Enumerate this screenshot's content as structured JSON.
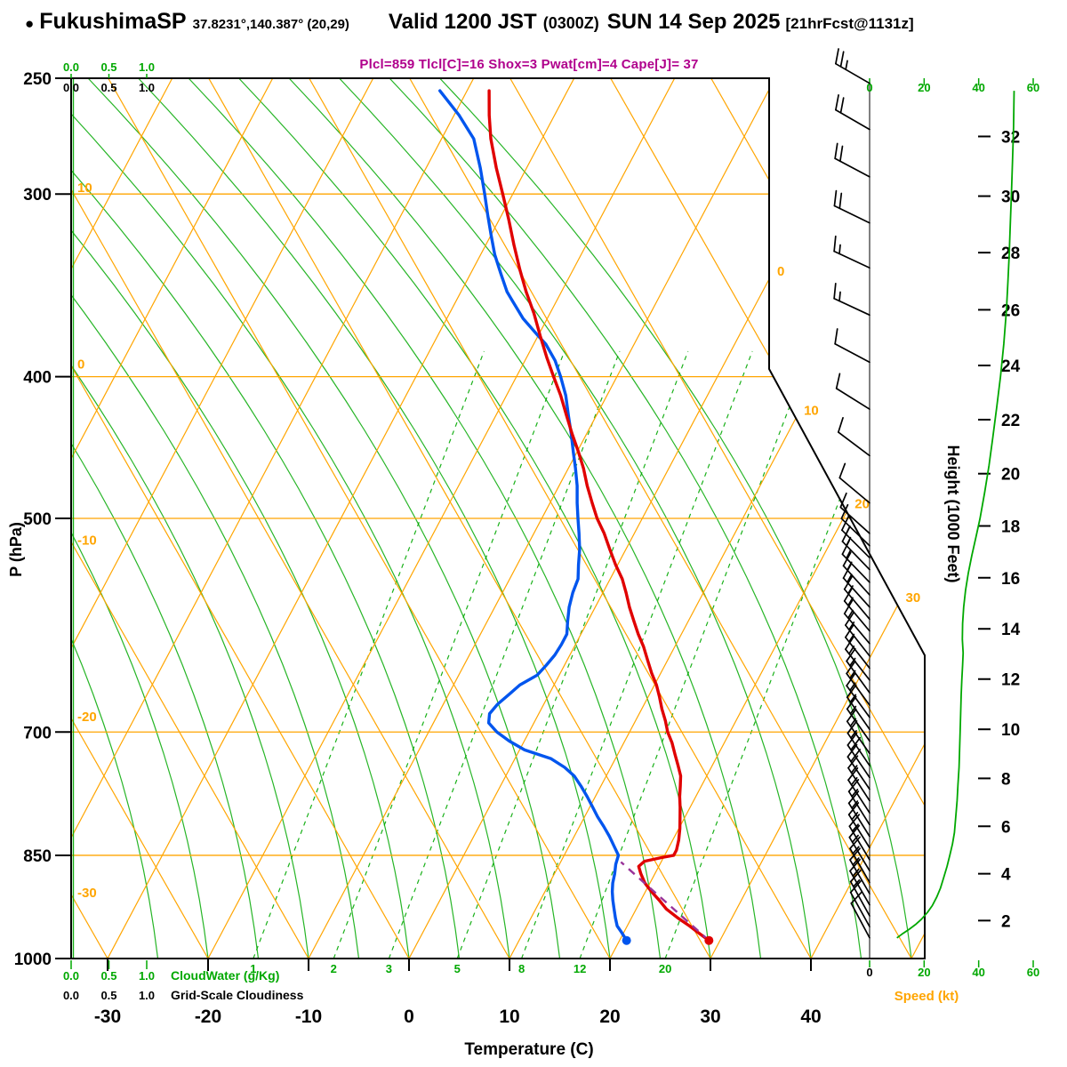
{
  "header": {
    "bullet": "●",
    "station": "FukushimaSP",
    "coords": "37.8231°,140.387° (20,29)",
    "valid_time": "Valid 1200 JST",
    "valid_z": "(0300Z)",
    "valid_date": "SUN 14 Sep 2025",
    "fcst": "[21hrFcst@1131z]",
    "indices": "Plcl=859 Tlcl[C]=16 Shox=3 Pwat[cm]=4 Cape[J]= 37"
  },
  "axis_labels": {
    "pressure": "P (hPa)",
    "temperature": "Temperature (C)",
    "height": "Height (1000 Feet)",
    "speed": "Speed (kt)",
    "cloudwater": "CloudWater (g/Kg)",
    "cloudiness": "Grid-Scale Cloudiness"
  },
  "colors": {
    "orange": "#FFA500",
    "green": "#00A800",
    "red": "#E00000",
    "blue": "#0055EE",
    "magenta": "#B0008C",
    "purple": "#993399",
    "black": "#000000"
  },
  "chart_data": {
    "type": "line",
    "subtype": "skewT-logP-sounding",
    "pressure_ticks": [
      250,
      300,
      400,
      500,
      700,
      850,
      1000
    ],
    "temp_ticks": [
      -30,
      -20,
      -10,
      0,
      10,
      20,
      30,
      40
    ],
    "speed_ticks": [
      0,
      20,
      40,
      60
    ],
    "unit_ticks": [
      "0.0",
      "0.5",
      "1.0"
    ],
    "height_labels": [
      [
        2,
        942
      ],
      [
        4,
        875
      ],
      [
        6,
        812
      ],
      [
        8,
        753
      ],
      [
        10,
        697
      ],
      [
        12,
        644
      ],
      [
        14,
        595
      ],
      [
        16,
        549
      ],
      [
        18,
        506
      ],
      [
        20,
        466
      ],
      [
        22,
        428
      ],
      [
        24,
        393
      ],
      [
        26,
        360
      ],
      [
        28,
        329
      ],
      [
        30,
        301
      ],
      [
        32,
        274
      ]
    ],
    "mixing_ratio_labels": [
      [
        1,
        -15.5
      ],
      [
        2,
        -7.5
      ],
      [
        3,
        -2.0
      ],
      [
        5,
        4.8
      ],
      [
        8,
        11.2
      ],
      [
        12,
        17.0
      ],
      [
        20,
        25.5
      ]
    ],
    "isotherm_exit_labels": [
      0,
      10,
      20,
      30
    ],
    "dry_adiabat_labels": [
      10,
      0,
      -10,
      -20,
      -30
    ],
    "grid": {
      "isotherm_range": [
        -80,
        50
      ],
      "dry_range": [
        -60,
        90
      ],
      "moist_range": [
        -25,
        50
      ],
      "moist_step": 5
    },
    "parcel": {
      "p0": 972,
      "t0": 28.9,
      "plcl": 859,
      "tlcl": 16
    },
    "surface_dots": {
      "temp": [
        972,
        28.9
      ],
      "dew": [
        972,
        20.7
      ]
    },
    "temperature_profile": [
      [
        972,
        28.9
      ],
      [
        960,
        27.4
      ],
      [
        950,
        26.2
      ],
      [
        938,
        24.6
      ],
      [
        925,
        23.0
      ],
      [
        912,
        21.8
      ],
      [
        900,
        20.6
      ],
      [
        888,
        19.5
      ],
      [
        875,
        18.6
      ],
      [
        865,
        18.0
      ],
      [
        858,
        18.3
      ],
      [
        853,
        19.8
      ],
      [
        850,
        20.9
      ],
      [
        843,
        20.9
      ],
      [
        830,
        20.6
      ],
      [
        815,
        20.1
      ],
      [
        800,
        19.5
      ],
      [
        788,
        19.0
      ],
      [
        775,
        18.4
      ],
      [
        762,
        17.9
      ],
      [
        750,
        17.4
      ],
      [
        738,
        16.6
      ],
      [
        725,
        15.7
      ],
      [
        712,
        14.8
      ],
      [
        700,
        13.8
      ],
      [
        688,
        13.0
      ],
      [
        675,
        12.0
      ],
      [
        662,
        11.1
      ],
      [
        650,
        10.2
      ],
      [
        638,
        9.1
      ],
      [
        625,
        8.0
      ],
      [
        612,
        6.9
      ],
      [
        600,
        5.7
      ],
      [
        588,
        4.6
      ],
      [
        575,
        3.4
      ],
      [
        562,
        2.3
      ],
      [
        550,
        1.2
      ],
      [
        538,
        -0.2
      ],
      [
        525,
        -1.6
      ],
      [
        512,
        -3.0
      ],
      [
        500,
        -4.5
      ],
      [
        488,
        -5.8
      ],
      [
        475,
        -7.2
      ],
      [
        462,
        -8.5
      ],
      [
        450,
        -9.9
      ],
      [
        438,
        -11.4
      ],
      [
        425,
        -13.0
      ],
      [
        412,
        -14.6
      ],
      [
        400,
        -16.3
      ],
      [
        388,
        -18.0
      ],
      [
        375,
        -19.8
      ],
      [
        362,
        -21.6
      ],
      [
        350,
        -23.5
      ],
      [
        338,
        -25.3
      ],
      [
        325,
        -27.2
      ],
      [
        312,
        -29.1
      ],
      [
        300,
        -31.0
      ],
      [
        288,
        -33.0
      ],
      [
        275,
        -35.1
      ],
      [
        265,
        -36.5
      ],
      [
        255,
        -37.8
      ]
    ],
    "dewpoint_profile": [
      [
        972,
        20.7
      ],
      [
        960,
        19.8
      ],
      [
        950,
        19.0
      ],
      [
        938,
        18.4
      ],
      [
        925,
        17.8
      ],
      [
        912,
        17.2
      ],
      [
        900,
        16.7
      ],
      [
        888,
        16.3
      ],
      [
        875,
        16.0
      ],
      [
        862,
        15.6
      ],
      [
        850,
        15.4
      ],
      [
        838,
        14.5
      ],
      [
        825,
        13.5
      ],
      [
        812,
        12.4
      ],
      [
        800,
        11.3
      ],
      [
        788,
        10.3
      ],
      [
        775,
        9.2
      ],
      [
        762,
        8.0
      ],
      [
        750,
        6.8
      ],
      [
        740,
        5.4
      ],
      [
        730,
        3.6
      ],
      [
        720,
        0.5
      ],
      [
        710,
        -1.5
      ],
      [
        700,
        -3.2
      ],
      [
        690,
        -4.5
      ],
      [
        680,
        -4.9
      ],
      [
        670,
        -4.6
      ],
      [
        660,
        -4.0
      ],
      [
        650,
        -3.4
      ],
      [
        640,
        -2.2
      ],
      [
        630,
        -1.8
      ],
      [
        620,
        -1.5
      ],
      [
        610,
        -1.4
      ],
      [
        600,
        -1.4
      ],
      [
        588,
        -2.0
      ],
      [
        575,
        -2.6
      ],
      [
        562,
        -3.0
      ],
      [
        550,
        -3.2
      ],
      [
        538,
        -3.9
      ],
      [
        525,
        -4.6
      ],
      [
        512,
        -5.5
      ],
      [
        500,
        -6.4
      ],
      [
        488,
        -7.3
      ],
      [
        475,
        -8.2
      ],
      [
        462,
        -9.3
      ],
      [
        450,
        -10.4
      ],
      [
        438,
        -11.5
      ],
      [
        425,
        -12.8
      ],
      [
        412,
        -14.1
      ],
      [
        400,
        -15.6
      ],
      [
        390,
        -17.0
      ],
      [
        380,
        -18.8
      ],
      [
        375,
        -20.0
      ],
      [
        365,
        -22.4
      ],
      [
        355,
        -24.4
      ],
      [
        350,
        -25.4
      ],
      [
        340,
        -27.0
      ],
      [
        330,
        -28.6
      ],
      [
        320,
        -30.0
      ],
      [
        310,
        -31.4
      ],
      [
        300,
        -32.8
      ],
      [
        288,
        -34.6
      ],
      [
        275,
        -36.8
      ],
      [
        265,
        -39.5
      ],
      [
        255,
        -42.7
      ]
    ],
    "wind_barbs": [
      [
        252,
        25,
        300
      ],
      [
        271,
        22,
        300
      ],
      [
        292,
        20,
        298
      ],
      [
        314,
        18,
        296
      ],
      [
        337,
        15,
        295
      ],
      [
        363,
        13,
        295
      ],
      [
        391,
        12,
        298
      ],
      [
        421,
        10,
        302
      ],
      [
        453,
        10,
        307
      ],
      [
        488,
        12,
        310
      ],
      [
        512,
        12,
        312
      ],
      [
        522,
        12,
        314
      ],
      [
        532,
        13,
        315
      ],
      [
        542,
        13,
        316
      ],
      [
        553,
        14,
        316
      ],
      [
        564,
        14,
        318
      ],
      [
        575,
        15,
        318
      ],
      [
        586,
        15,
        320
      ],
      [
        597,
        15,
        320
      ],
      [
        609,
        16,
        320
      ],
      [
        621,
        16,
        322
      ],
      [
        633,
        16,
        322
      ],
      [
        645,
        15,
        322
      ],
      [
        658,
        15,
        324
      ],
      [
        671,
        15,
        324
      ],
      [
        684,
        16,
        324
      ],
      [
        697,
        16,
        325
      ],
      [
        710,
        17,
        325
      ],
      [
        724,
        17,
        325
      ],
      [
        738,
        17,
        326
      ],
      [
        752,
        18,
        326
      ],
      [
        766,
        18,
        326
      ],
      [
        780,
        17,
        327
      ],
      [
        795,
        17,
        327
      ],
      [
        810,
        16,
        328
      ],
      [
        825,
        16,
        328
      ],
      [
        840,
        16,
        328
      ],
      [
        856,
        15,
        329
      ],
      [
        871,
        15,
        329
      ],
      [
        887,
        14,
        330
      ],
      [
        903,
        14,
        330
      ],
      [
        919,
        13,
        330
      ],
      [
        935,
        13,
        331
      ],
      [
        951,
        12,
        331
      ],
      [
        968,
        12,
        332
      ]
    ],
    "cloud_water_profile": [
      [
        255,
        53
      ],
      [
        270,
        52.8
      ],
      [
        285,
        52.4
      ],
      [
        300,
        52
      ],
      [
        315,
        51.6
      ],
      [
        330,
        51.2
      ],
      [
        345,
        50.7
      ],
      [
        360,
        50.2
      ],
      [
        380,
        49.2
      ],
      [
        400,
        48
      ],
      [
        420,
        46.6
      ],
      [
        440,
        45.2
      ],
      [
        460,
        43.8
      ],
      [
        480,
        42.2
      ],
      [
        500,
        40.5
      ],
      [
        515,
        39
      ],
      [
        530,
        37.5
      ],
      [
        545,
        36.2
      ],
      [
        560,
        35.2
      ],
      [
        575,
        34.5
      ],
      [
        590,
        34.1
      ],
      [
        605,
        34
      ],
      [
        618,
        34.3
      ],
      [
        630,
        34.1
      ],
      [
        645,
        33.8
      ],
      [
        660,
        33.6
      ],
      [
        680,
        33.4
      ],
      [
        700,
        33.2
      ],
      [
        720,
        33
      ],
      [
        740,
        32.8
      ],
      [
        760,
        32.4
      ],
      [
        780,
        32.1
      ],
      [
        800,
        31.6
      ],
      [
        820,
        31.1
      ],
      [
        835,
        30.4
      ],
      [
        850,
        29.4
      ],
      [
        865,
        28.4
      ],
      [
        880,
        27.2
      ],
      [
        895,
        26
      ],
      [
        908,
        24.6
      ],
      [
        920,
        23
      ],
      [
        930,
        21.2
      ],
      [
        940,
        19
      ],
      [
        948,
        16.8
      ],
      [
        955,
        14.5
      ],
      [
        962,
        12
      ],
      [
        968,
        10
      ]
    ],
    "cloud_scale_range": [
      0,
      60
    ]
  }
}
